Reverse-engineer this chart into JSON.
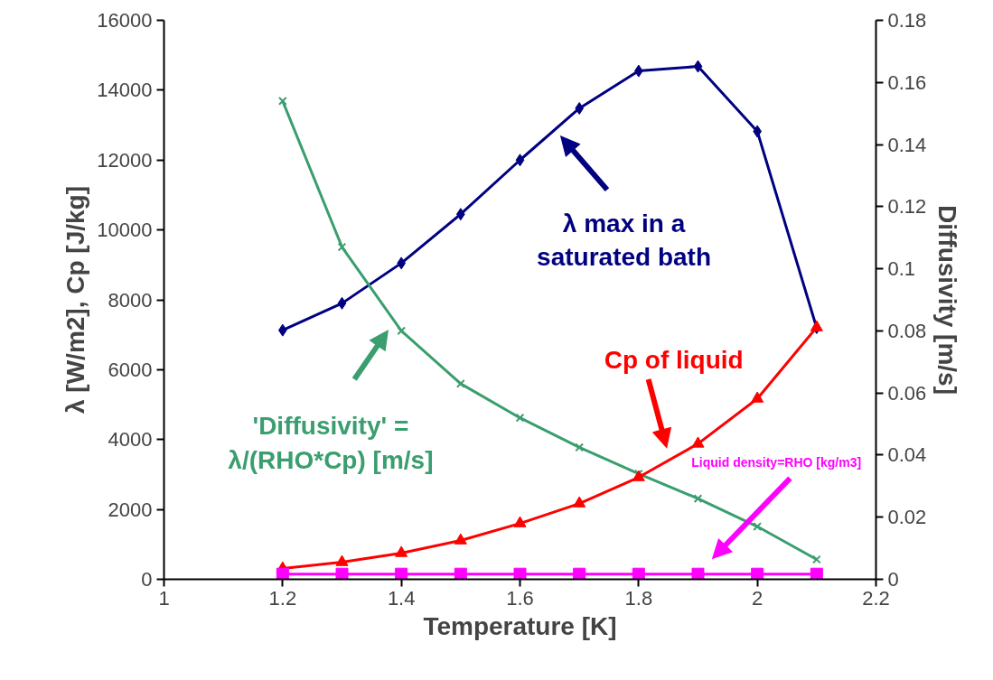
{
  "chart_data": {
    "type": "line",
    "xlabel": "Temperature [K]",
    "ylabel": "λ [W/m2], Cp [J/kg]",
    "y2label": "Diffusivity [m/s]",
    "x": [
      1.2,
      1.3,
      1.4,
      1.5,
      1.6,
      1.7,
      1.8,
      1.9,
      2.0,
      2.1
    ],
    "series": [
      {
        "color": "#000080",
        "marker": "diamond",
        "values": [
          7130,
          7900,
          9050,
          10450,
          12000,
          13480,
          14550,
          14680,
          12820,
          7200
        ]
      },
      {
        "color": "#3a9e6e",
        "marker": "cross",
        "axis": "y2",
        "values": [
          0.154,
          0.107,
          0.08,
          0.063,
          0.052,
          0.0425,
          0.034,
          0.026,
          0.017,
          0.0064
        ]
      },
      {
        "color": "#ff0000",
        "marker": "triangle",
        "values": [
          310,
          490,
          750,
          1110,
          1600,
          2170,
          2920,
          3880,
          5170,
          7210
        ]
      },
      {
        "color": "#ff00ff",
        "marker": "square",
        "values": [
          150,
          150,
          150,
          150,
          150,
          150,
          150,
          150,
          150,
          150
        ]
      }
    ],
    "annotations": [
      "λ max in a\nsaturated bath",
      "'Diffusivity' =\nλ/(RHO*Cp) [m/s]",
      "Cp of liquid",
      "Liquid density=RHO [kg/m3]"
    ],
    "xlim": [
      1,
      2.2
    ],
    "xticks": [
      1,
      1.2,
      1.4,
      1.6,
      1.8,
      2,
      2.2
    ],
    "ylim": [
      0,
      16000
    ],
    "yticks": [
      0,
      2000,
      4000,
      6000,
      8000,
      10000,
      12000,
      14000,
      16000
    ],
    "y2lim": [
      0,
      0.18
    ],
    "y2ticks": [
      0,
      0.02,
      0.04,
      0.06,
      0.08,
      0.1,
      0.12,
      0.14,
      0.16,
      0.18
    ],
    "grid": false
  }
}
